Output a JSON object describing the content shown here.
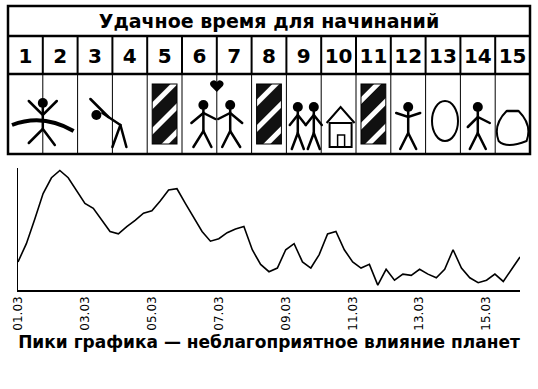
{
  "table": {
    "title": "Удачное время для начинаний",
    "columns": [
      "1",
      "2",
      "3",
      "4",
      "5",
      "6",
      "7",
      "8",
      "9",
      "10",
      "11",
      "12",
      "13",
      "14",
      "15"
    ]
  },
  "chart_data": {
    "type": "line",
    "xlabel": "Пики графика — неблагоприятное влияние планет",
    "categories": [
      "01.03",
      null,
      null,
      null,
      null,
      null,
      null,
      null,
      "03.03",
      null,
      null,
      null,
      null,
      null,
      null,
      null,
      "05.03",
      null,
      null,
      null,
      null,
      null,
      null,
      null,
      "07.03",
      null,
      null,
      null,
      null,
      null,
      null,
      null,
      "09.03",
      null,
      null,
      null,
      null,
      null,
      null,
      null,
      "11.03",
      null,
      null,
      null,
      null,
      null,
      null,
      null,
      "13.03",
      null,
      null,
      null,
      null,
      null,
      null,
      null,
      "15.03",
      null,
      null,
      null,
      null
    ],
    "values": [
      23,
      38,
      58,
      79,
      92,
      98,
      92,
      81,
      71,
      67,
      57,
      48,
      46,
      52,
      57,
      63,
      65,
      73,
      82,
      83,
      71,
      60,
      48,
      40,
      42,
      47,
      50,
      52,
      33,
      21,
      15,
      18,
      33,
      38,
      23,
      18,
      29,
      46,
      48,
      33,
      23,
      18,
      21,
      4,
      17,
      8,
      13,
      12,
      17,
      13,
      10,
      17,
      33,
      18,
      10,
      6,
      8,
      13,
      7,
      17,
      27
    ],
    "color": "#000000",
    "ylim": [
      0,
      100
    ],
    "tick_labels": "x",
    "grid": false
  }
}
